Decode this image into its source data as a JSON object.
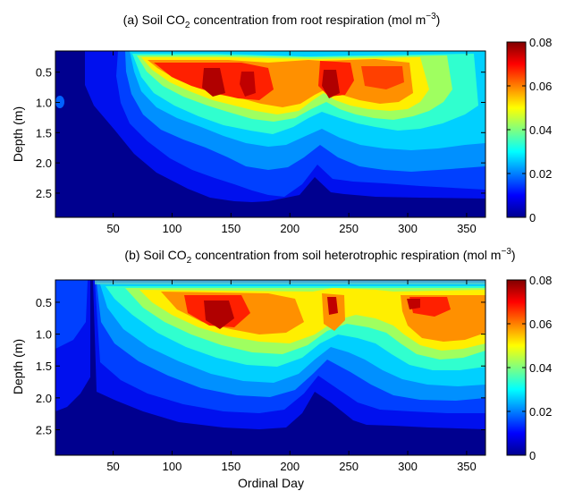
{
  "chart_data": [
    {
      "type": "heatmap",
      "panel_label": "(a)",
      "title_parts": [
        "(a) Soil CO",
        "2",
        " concentration from root respiration (mol m",
        "−3",
        ")"
      ],
      "ylabel": "Depth (m)",
      "xlabel": "",
      "xlim": [
        1,
        366
      ],
      "ylim": [
        2.9,
        0.15
      ],
      "xticks": [
        50,
        100,
        150,
        200,
        250,
        300,
        350
      ],
      "xtick_labels": [
        "50",
        "100",
        "150",
        "200",
        "250",
        "300",
        "350"
      ],
      "yticks": [
        0.5,
        1.0,
        1.5,
        2.0,
        2.5
      ],
      "ytick_labels": [
        "0.5",
        "1.0",
        "1.5",
        "2.0",
        "2.5"
      ],
      "colorbar": {
        "range": [
          0,
          0.08
        ],
        "ticks": [
          0,
          0.02,
          0.04,
          0.06,
          0.08
        ],
        "tick_labels": [
          "0",
          "0.02",
          "0.04",
          "0.06",
          "0.08"
        ],
        "colormap": "jet"
      },
      "contour_boundaries": [
        {
          "level": 0.005,
          "x": [
            60,
            75,
            90,
            110,
            130,
            150,
            170,
            190,
            210,
            220,
            230,
            250,
            270,
            290,
            310,
            330,
            350,
            365
          ],
          "depth": [
            0.28,
            0.34,
            0.42,
            0.55,
            0.7,
            0.62,
            0.55,
            0.55,
            0.5,
            0.45,
            0.45,
            0.45,
            0.45,
            0.4,
            0.35,
            0.33,
            0.32,
            0.32
          ],
          "bottom": [
            0.5,
            0.95,
            1.3,
            1.55,
            1.8,
            1.95,
            2.1,
            2.3,
            2.1,
            1.95,
            2.05,
            2.2,
            2.25,
            2.2,
            2.2,
            2.2,
            2.2,
            2.2
          ]
        },
        {
          "level": 0.01,
          "x": [
            115,
            130,
            150,
            170,
            190,
            205,
            220,
            235,
            250,
            270,
            290,
            310,
            330,
            350,
            365
          ],
          "depth": [
            0.2,
            0.2,
            0.2,
            0.2,
            0.2,
            0.2,
            0.2,
            0.2,
            0.2,
            0.2,
            0.2,
            0.2,
            0.22,
            0.25,
            0.28
          ],
          "bottom": [
            0.9,
            1.5,
            1.9,
            2.15,
            2.45,
            2.45,
            2.2,
            2.3,
            2.45,
            2.5,
            2.5,
            2.5,
            2.55,
            2.55,
            2.55
          ]
        },
        {
          "level": 0.02,
          "x": [
            122,
            135,
            150,
            170,
            190,
            200,
            212,
            225,
            240,
            260,
            280,
            300,
            320,
            340,
            358,
            366
          ],
          "depth": [
            0.2,
            0.2,
            0.2,
            0.2,
            0.2,
            0.2,
            0.2,
            0.2,
            0.2,
            0.2,
            0.2,
            0.2,
            0.2,
            0.2,
            0.2,
            0.2
          ],
          "bottom": [
            1.0,
            1.45,
            1.7,
            1.85,
            2.1,
            2.25,
            1.95,
            1.7,
            1.85,
            2.0,
            2.1,
            2.1,
            2.15,
            2.15,
            2.2,
            2.25
          ]
        }
      ]
    },
    {
      "type": "heatmap",
      "panel_label": "(b)",
      "title_parts": [
        "(b) Soil CO",
        "2",
        " concentration from soil heterotrophic respiration (mol m",
        "−3",
        ")"
      ],
      "ylabel": "Depth (m)",
      "xlabel": "Ordinal Day",
      "xlim": [
        1,
        366
      ],
      "ylim": [
        2.9,
        0.15
      ],
      "xticks": [
        50,
        100,
        150,
        200,
        250,
        300,
        350
      ],
      "xtick_labels": [
        "50",
        "100",
        "150",
        "200",
        "250",
        "300",
        "350"
      ],
      "yticks": [
        0.5,
        1.0,
        1.5,
        2.0,
        2.5
      ],
      "ytick_labels": [
        "0.5",
        "1.0",
        "1.5",
        "2.0",
        "2.5"
      ],
      "colorbar": {
        "range": [
          0,
          0.08
        ],
        "ticks": [
          0,
          0.02,
          0.04,
          0.06,
          0.08
        ],
        "tick_labels": [
          "0",
          "0.02",
          "0.04",
          "0.06",
          "0.08"
        ],
        "colormap": "jet"
      }
    }
  ]
}
